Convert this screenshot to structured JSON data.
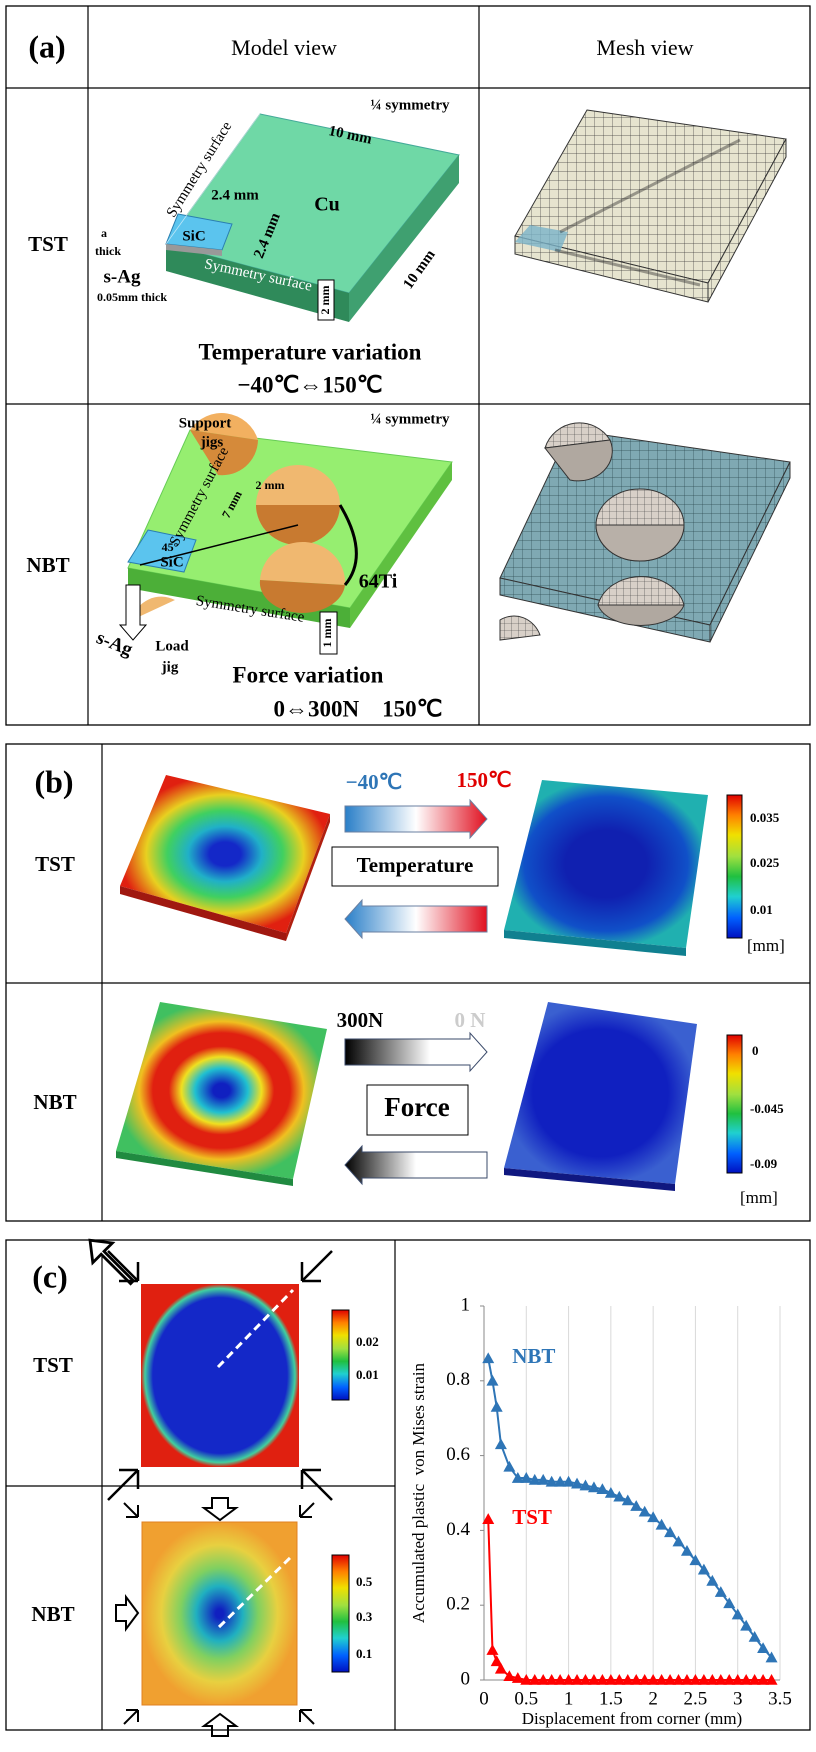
{
  "panel_a": {
    "label": "(a)",
    "headers": [
      "Model view",
      "Mesh view"
    ],
    "tst": {
      "label": "TST",
      "symmetry": "¼ symmetry",
      "length": "10 mm",
      "sym_surface_side": "Symmetry surface",
      "sic_width": "2.4 mm",
      "material": "Cu",
      "sic_depth": "2.4 mm",
      "thick_a": "a",
      "thick_b": "thick",
      "chip": "SiC",
      "bond": "s-Ag",
      "bond_thickness": "0.05mm thick",
      "sym_surface_front": "Symmetry surface",
      "height": "2 mm",
      "width": "10 mm",
      "caption": [
        "Temperature variation",
        "−40℃⇔150℃"
      ]
    },
    "nbt": {
      "label": "NBT",
      "symmetry": "¼ symmetry",
      "support_a": "Support",
      "support_b": "jigs",
      "jig_size": "2 mm",
      "sym_surface_side": "Symmetry surface",
      "distance": "7 mm",
      "angle": "45°",
      "chip": "SiC",
      "material": "64Ti",
      "bond": "s-Ag",
      "sym_surface_front": "Symmetry surface",
      "height": "1 mm",
      "load_a": "Load",
      "load_b": "jig",
      "caption": [
        "Force variation",
        "0⇔300N    150℃"
      ]
    }
  },
  "panel_b": {
    "label": "(b)",
    "tst": {
      "label": "TST",
      "low": "−40℃",
      "high": "150℃",
      "box": "Temperature",
      "colorbar": [
        "0.035",
        "0.025",
        "0.01"
      ],
      "unit": "[mm]"
    },
    "nbt": {
      "label": "NBT",
      "from": "300N",
      "to": "0 N",
      "box": "Force",
      "colorbar": [
        "0",
        "-0.045",
        "-0.09"
      ],
      "unit": "[mm]"
    }
  },
  "panel_c": {
    "label": "(c)",
    "tst": {
      "label": "TST",
      "colorbar": [
        "0.02",
        "0.01"
      ]
    },
    "nbt": {
      "label": "NBT",
      "colorbar": [
        "0.5",
        "0.3",
        "0.1"
      ]
    }
  },
  "chart_data": {
    "type": "line",
    "x_label": "Displacement from corner (mm)",
    "y_label": "Accumulated plastic  von Mises strain",
    "x": [
      0.05,
      0.1,
      0.15,
      0.2,
      0.3,
      0.4,
      0.5,
      0.6,
      0.7,
      0.8,
      0.9,
      1.0,
      1.1,
      1.2,
      1.3,
      1.4,
      1.5,
      1.6,
      1.7,
      1.8,
      1.9,
      2.0,
      2.1,
      2.2,
      2.3,
      2.4,
      2.5,
      2.6,
      2.7,
      2.8,
      2.9,
      3.0,
      3.1,
      3.2,
      3.3,
      3.4
    ],
    "series": [
      {
        "name": "NBT",
        "color": "#2e75b6",
        "values": [
          0.86,
          0.8,
          0.73,
          0.63,
          0.57,
          0.54,
          0.54,
          0.535,
          0.535,
          0.53,
          0.53,
          0.53,
          0.525,
          0.52,
          0.515,
          0.51,
          0.5,
          0.49,
          0.48,
          0.465,
          0.45,
          0.435,
          0.415,
          0.395,
          0.37,
          0.345,
          0.32,
          0.295,
          0.265,
          0.235,
          0.205,
          0.175,
          0.145,
          0.115,
          0.085,
          0.06
        ]
      },
      {
        "name": "TST",
        "color": "#ff0000",
        "values": [
          0.43,
          0.08,
          0.05,
          0.03,
          0.01,
          0.005,
          0,
          0,
          0,
          0,
          0,
          0,
          0,
          0,
          0,
          0,
          0,
          0,
          0,
          0,
          0,
          0,
          0,
          0,
          0,
          0,
          0,
          0,
          0,
          0,
          0,
          0,
          0,
          0,
          0,
          0
        ]
      }
    ],
    "xlim": [
      0,
      3.5
    ],
    "ylim": [
      0,
      1
    ],
    "xticks": [
      0,
      0.5,
      1,
      1.5,
      2,
      2.5,
      3,
      3.5
    ],
    "yticks": [
      0,
      0.2,
      0.4,
      0.6,
      0.8,
      1
    ],
    "grid": "x",
    "marker": "triangle"
  }
}
